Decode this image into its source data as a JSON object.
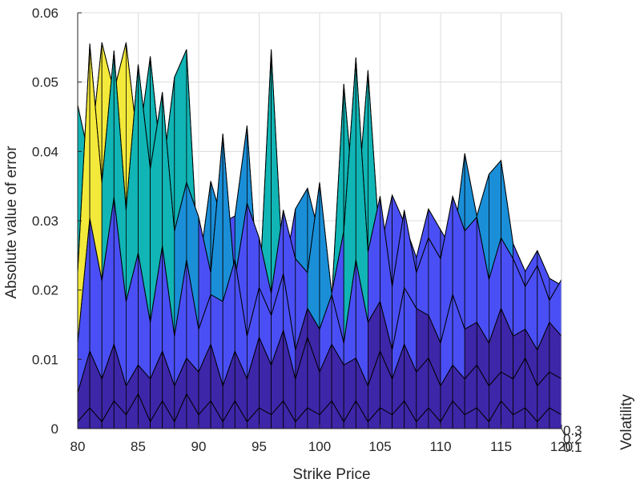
{
  "chart_data": {
    "type": "surface",
    "title": "",
    "xlabel": "Strike Price",
    "ylabel": "Absolute value of error",
    "zlabel": "Volatility",
    "xlim": [
      80,
      120
    ],
    "ylim": [
      0,
      0.06
    ],
    "x_ticks": [
      80,
      85,
      90,
      95,
      100,
      105,
      110,
      115,
      120
    ],
    "x_tick_labels": [
      "80",
      "85",
      "90",
      "95",
      "100",
      "105",
      "110",
      "115",
      "120"
    ],
    "y_ticks": [
      0,
      0.01,
      0.02,
      0.03,
      0.04,
      0.05,
      0.06
    ],
    "y_tick_labels": [
      "0",
      "0.01",
      "0.02",
      "0.03",
      "0.04",
      "0.05",
      "0.06"
    ],
    "depth_ticks": [
      0.1,
      0.2,
      0.3
    ],
    "depth_tick_labels": [
      "0.1",
      "0.2",
      "0.3"
    ],
    "grid": true,
    "strike_prices": [
      80,
      81,
      82,
      83,
      84,
      85,
      86,
      87,
      88,
      89,
      90,
      91,
      92,
      93,
      94,
      95,
      96,
      97,
      98,
      99,
      100,
      101,
      102,
      103,
      104,
      105,
      106,
      107,
      108,
      109,
      110,
      111,
      112,
      113,
      114,
      115,
      116,
      117,
      118,
      119,
      120
    ],
    "volatilities": [
      0.1,
      0.15,
      0.2,
      0.25,
      0.3
    ],
    "series": [
      {
        "volatility": 0.3,
        "values": [
          0.046,
          0.038,
          0.055,
          0.048,
          0.055,
          0.04,
          0.053,
          0.036,
          0.05,
          0.054,
          0.022,
          0.035,
          0.029,
          0.03,
          0.043,
          0.018,
          0.054,
          0.021,
          0.031,
          0.034,
          0.027,
          0.018,
          0.049,
          0.029,
          0.051,
          0.025,
          0.033,
          0.029,
          0.024,
          0.031,
          0.028,
          0.025,
          0.039,
          0.03,
          0.036,
          0.038,
          0.026,
          0.022,
          0.025,
          0.021,
          0.02
        ]
      },
      {
        "volatility": 0.25,
        "values": [
          0.022,
          0.055,
          0.035,
          0.054,
          0.031,
          0.052,
          0.037,
          0.048,
          0.028,
          0.035,
          0.03,
          0.022,
          0.042,
          0.021,
          0.032,
          0.027,
          0.019,
          0.031,
          0.024,
          0.022,
          0.035,
          0.019,
          0.028,
          0.053,
          0.025,
          0.033,
          0.02,
          0.031,
          0.022,
          0.027,
          0.024,
          0.033,
          0.028,
          0.03,
          0.021,
          0.027,
          0.024,
          0.02,
          0.023,
          0.018,
          0.021
        ]
      },
      {
        "volatility": 0.2,
        "values": [
          0.012,
          0.03,
          0.021,
          0.033,
          0.018,
          0.025,
          0.015,
          0.026,
          0.013,
          0.024,
          0.014,
          0.019,
          0.018,
          0.024,
          0.013,
          0.02,
          0.016,
          0.022,
          0.011,
          0.017,
          0.014,
          0.019,
          0.012,
          0.024,
          0.015,
          0.018,
          0.011,
          0.02,
          0.017,
          0.016,
          0.012,
          0.019,
          0.014,
          0.015,
          0.012,
          0.017,
          0.013,
          0.014,
          0.011,
          0.015,
          0.013
        ]
      },
      {
        "volatility": 0.15,
        "values": [
          0.005,
          0.011,
          0.007,
          0.012,
          0.006,
          0.009,
          0.007,
          0.011,
          0.006,
          0.01,
          0.008,
          0.012,
          0.006,
          0.011,
          0.007,
          0.013,
          0.009,
          0.014,
          0.007,
          0.013,
          0.008,
          0.012,
          0.009,
          0.01,
          0.006,
          0.011,
          0.007,
          0.012,
          0.008,
          0.01,
          0.006,
          0.009,
          0.007,
          0.009,
          0.006,
          0.008,
          0.007,
          0.01,
          0.006,
          0.008,
          0.007
        ]
      },
      {
        "volatility": 0.1,
        "values": [
          0.001,
          0.003,
          0.001,
          0.004,
          0.002,
          0.005,
          0.001,
          0.004,
          0.001,
          0.005,
          0.002,
          0.004,
          0.001,
          0.004,
          0.001,
          0.003,
          0.002,
          0.004,
          0.001,
          0.003,
          0.002,
          0.004,
          0.001,
          0.004,
          0.001,
          0.003,
          0.002,
          0.004,
          0.001,
          0.003,
          0.001,
          0.004,
          0.002,
          0.003,
          0.001,
          0.004,
          0.002,
          0.003,
          0.001,
          0.003,
          0.002
        ]
      }
    ],
    "colors": {
      "low": "#3e26a8",
      "mid_low": "#4a4ff5",
      "mid": "#1a8fd8",
      "mid_high": "#11b5b5",
      "high": "#74c64a",
      "top": "#f3e93a",
      "edge": "#000000",
      "grid": "#dcdcdc",
      "axis": "#262626"
    }
  }
}
